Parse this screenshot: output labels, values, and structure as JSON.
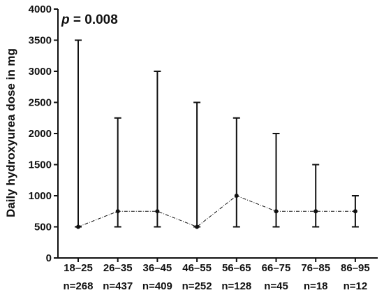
{
  "chart_data": {
    "type": "line",
    "ylabel": "Daily hydroxyurea dose in mg",
    "ylim": [
      0,
      4000
    ],
    "y_ticks": [
      0,
      500,
      1000,
      1500,
      2000,
      2500,
      3000,
      3500,
      4000
    ],
    "annotation": {
      "italic": "p",
      "rest": " = 0.008"
    },
    "categories": [
      "18–25",
      "26–35",
      "36–45",
      "46–55",
      "56–65",
      "66–75",
      "76–85",
      "86–95"
    ],
    "sample_sizes": [
      "n=268",
      "n=437",
      "n=409",
      "n=252",
      "n=128",
      "n=45",
      "n=18",
      "n=12"
    ],
    "series": [
      {
        "values": [
          500,
          750,
          750,
          500,
          1000,
          750,
          750,
          750
        ],
        "range_low": [
          500,
          500,
          500,
          500,
          500,
          500,
          500,
          500
        ],
        "range_high": [
          3500,
          2250,
          3000,
          2500,
          2250,
          2000,
          1500,
          1000
        ]
      }
    ],
    "grid": false
  }
}
